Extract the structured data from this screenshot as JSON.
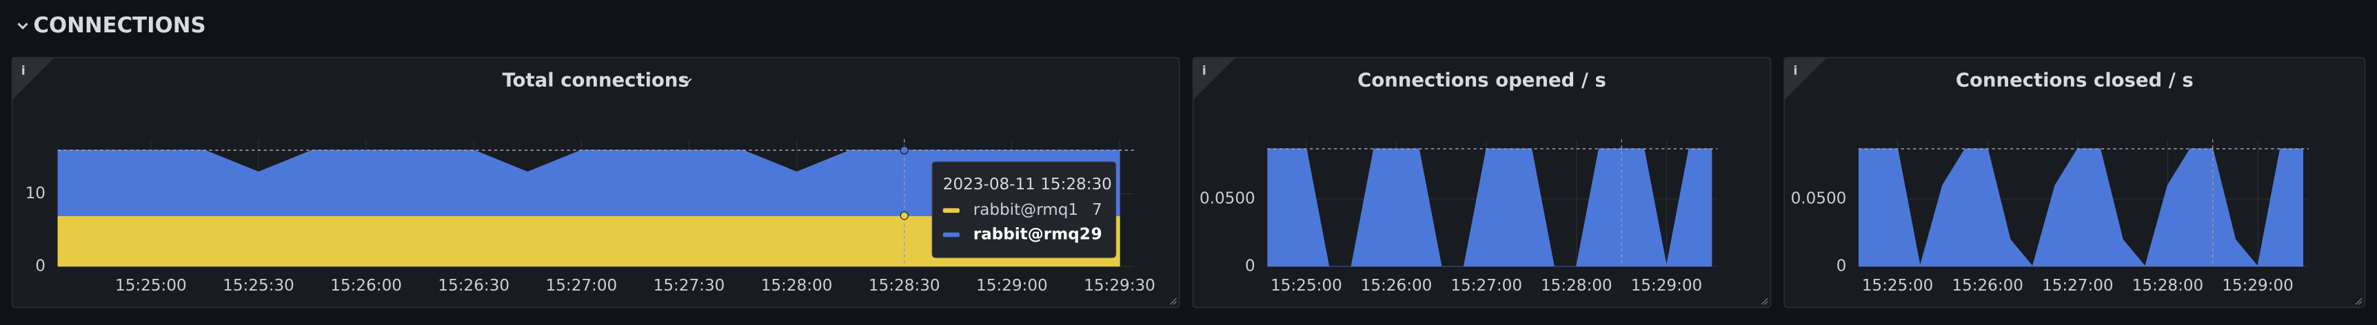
{
  "section_title": "CONNECTIONS",
  "chart_data": [
    {
      "type": "area",
      "stacked": true,
      "title": "Total connections",
      "x": [
        "15:24:30",
        "15:24:45",
        "15:25:00",
        "15:25:15",
        "15:25:30",
        "15:25:45",
        "15:26:00",
        "15:26:15",
        "15:26:30",
        "15:26:45",
        "15:27:00",
        "15:27:15",
        "15:27:30",
        "15:27:45",
        "15:28:00",
        "15:28:15",
        "15:28:30",
        "15:28:45",
        "15:29:00",
        "15:29:15",
        "15:29:30"
      ],
      "xlim": [
        "15:24:34",
        "15:29:34"
      ],
      "xticks": [
        "15:25:00",
        "15:25:30",
        "15:26:00",
        "15:26:30",
        "15:27:00",
        "15:27:30",
        "15:28:00",
        "15:28:30",
        "15:29:00",
        "15:29:30"
      ],
      "ylim": [
        0,
        17.5
      ],
      "yticks": [
        0,
        10
      ],
      "series": [
        {
          "name": "rabbit@rmq1",
          "color": "#e8cb45",
          "values": [
            7,
            7,
            7,
            7,
            7,
            7,
            7,
            7,
            7,
            7,
            7,
            7,
            7,
            7,
            7,
            7,
            7,
            7,
            7,
            7,
            7
          ]
        },
        {
          "name": "rabbit@rmq2",
          "color": "#4c78d9",
          "values": [
            9,
            9,
            9,
            9,
            6,
            9,
            9,
            9,
            9,
            6,
            9,
            9,
            9,
            9,
            6,
            9,
            9,
            9,
            9,
            9,
            9
          ]
        }
      ],
      "tooltip": {
        "title": "2023-08-11 15:28:30"
      }
    },
    {
      "type": "area",
      "title": "Connections opened / s",
      "x": [
        "15:24:30",
        "15:24:45",
        "15:25:00",
        "15:25:15",
        "15:25:30",
        "15:25:45",
        "15:26:00",
        "15:26:15",
        "15:26:30",
        "15:26:45",
        "15:27:00",
        "15:27:15",
        "15:27:30",
        "15:27:45",
        "15:28:00",
        "15:28:15",
        "15:28:30",
        "15:28:45",
        "15:29:00",
        "15:29:15",
        "15:29:30"
      ],
      "xlim": [
        "15:24:34",
        "15:29:34"
      ],
      "xticks": [
        "15:25:00",
        "15:26:00",
        "15:27:00",
        "15:28:00",
        "15:29:00"
      ],
      "ylim": [
        0,
        0.094
      ],
      "yticks": [
        0,
        {
          "value": 0.05,
          "label": "0.0500"
        }
      ],
      "series": [
        {
          "color": "#4c78d9",
          "values": [
            0.087,
            0.087,
            0.087,
            0,
            0,
            0.087,
            0.087,
            0.087,
            0,
            0,
            0.087,
            0.087,
            0.087,
            0,
            0,
            0.087,
            0.087,
            0.087,
            0,
            0.087,
            0.087
          ]
        }
      ]
    },
    {
      "type": "area",
      "title": "Connections closed / s",
      "x": [
        "15:24:30",
        "15:24:45",
        "15:25:00",
        "15:25:15",
        "15:25:30",
        "15:25:45",
        "15:26:00",
        "15:26:15",
        "15:26:30",
        "15:26:45",
        "15:27:00",
        "15:27:15",
        "15:27:30",
        "15:27:45",
        "15:28:00",
        "15:28:15",
        "15:28:30",
        "15:28:45",
        "15:29:00",
        "15:29:15",
        "15:29:30"
      ],
      "xlim": [
        "15:24:34",
        "15:29:34"
      ],
      "xticks": [
        "15:25:00",
        "15:26:00",
        "15:27:00",
        "15:28:00",
        "15:29:00"
      ],
      "ylim": [
        0,
        0.094
      ],
      "yticks": [
        0,
        {
          "value": 0.05,
          "label": "0.0500"
        }
      ],
      "series": [
        {
          "color": "#4c78d9",
          "values": [
            0.087,
            0.087,
            0.087,
            0,
            0.06,
            0.087,
            0.087,
            0.02,
            0,
            0.06,
            0.087,
            0.087,
            0.02,
            0,
            0.06,
            0.087,
            0.087,
            0.02,
            0,
            0.087,
            0.087
          ]
        }
      ]
    }
  ]
}
